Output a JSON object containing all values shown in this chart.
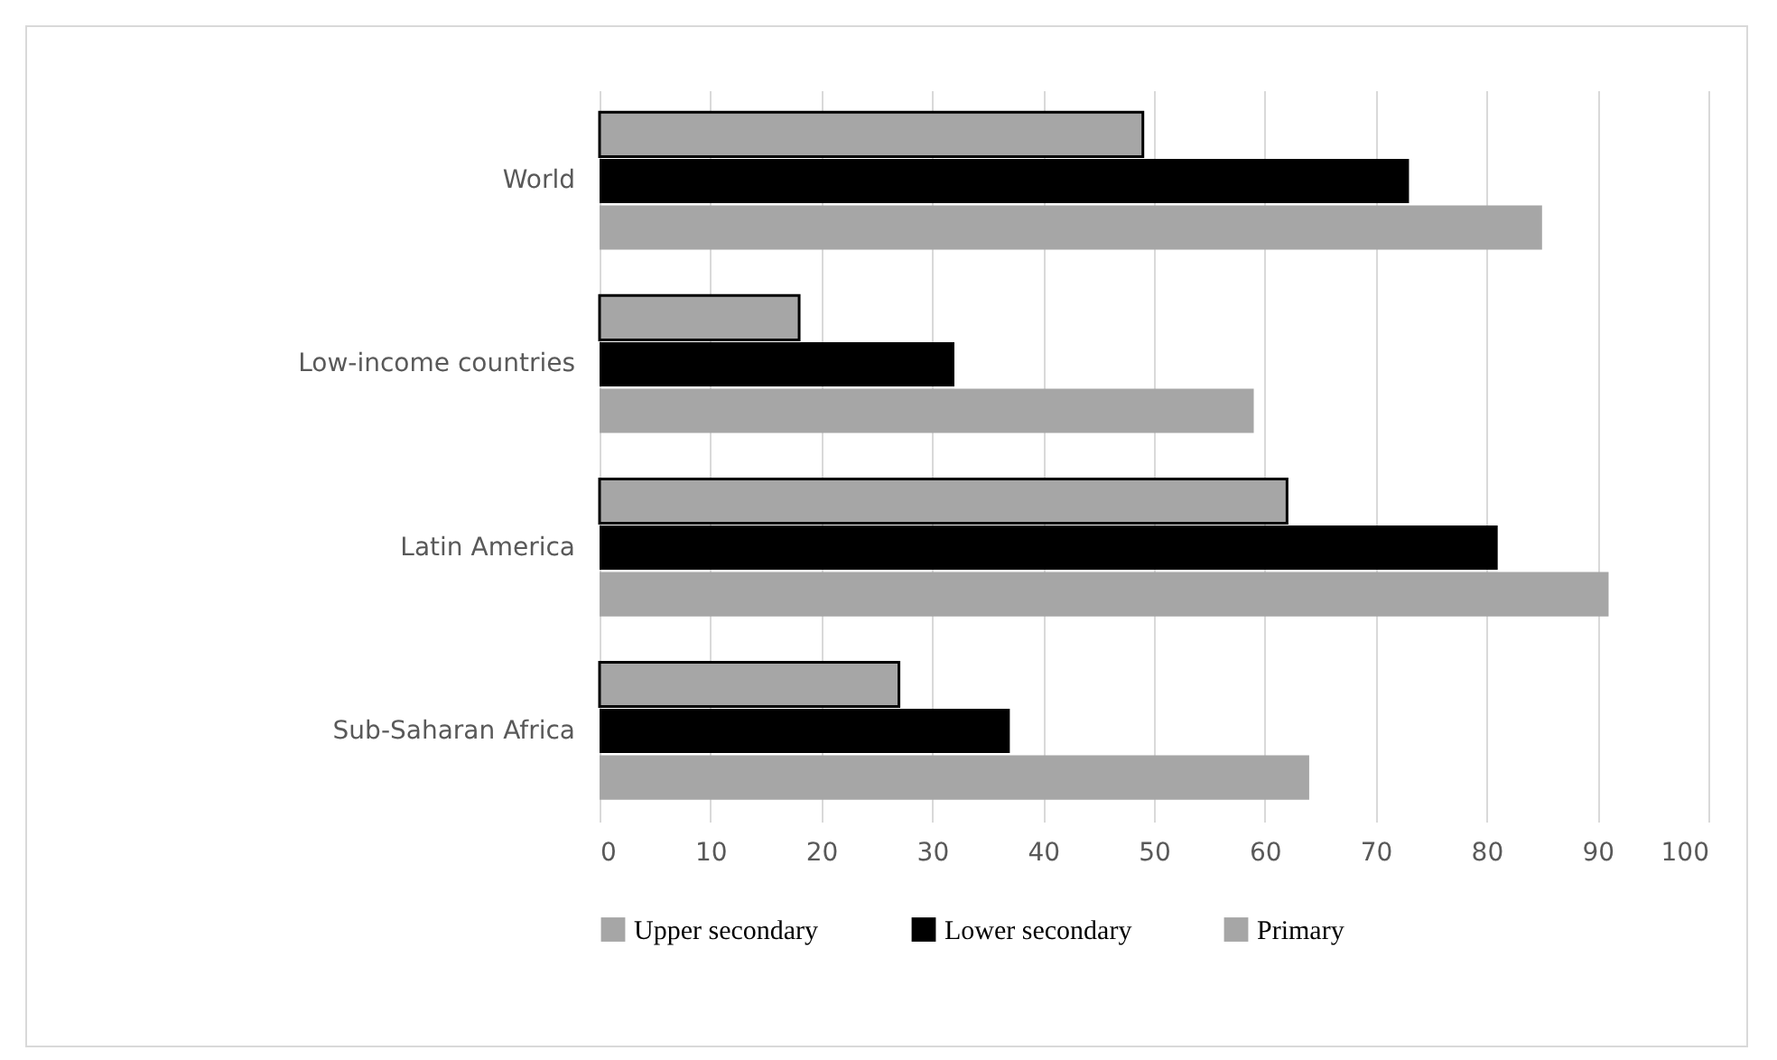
{
  "chart_data": {
    "type": "bar",
    "orientation": "horizontal",
    "categories": [
      "World",
      "Low-income countries",
      "Latin America",
      "Sub-Saharan Africa"
    ],
    "series": [
      {
        "name": "Upper secondary",
        "color": "#a6a6a6",
        "values": [
          49,
          18,
          62,
          27
        ]
      },
      {
        "name": "Lower secondary",
        "color": "#000000",
        "values": [
          73,
          32,
          81,
          37
        ]
      },
      {
        "name": "Primary",
        "color": "#a6a6a6",
        "values": [
          85,
          59,
          91,
          64
        ]
      }
    ],
    "xlim": [
      0,
      100
    ],
    "xticks": [
      0,
      10,
      20,
      30,
      40,
      50,
      60,
      70,
      80,
      90,
      100
    ],
    "grid": "x",
    "legend": "bottom"
  }
}
